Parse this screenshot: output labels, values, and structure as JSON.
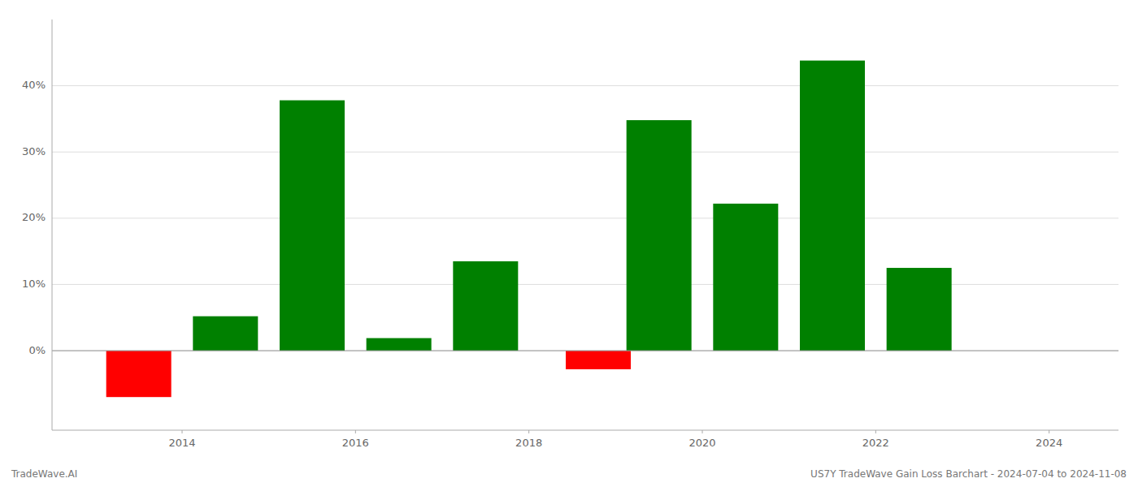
{
  "chart_data": {
    "type": "bar",
    "x": [
      2013.5,
      2014.5,
      2015.5,
      2016.5,
      2017.5,
      2018.8,
      2019.5,
      2020.5,
      2021.5,
      2022.5
    ],
    "values": [
      -7.0,
      5.2,
      37.8,
      1.9,
      13.5,
      -2.8,
      34.8,
      22.2,
      43.8,
      12.5
    ],
    "colors": [
      "#ff0000",
      "#008000",
      "#008000",
      "#008000",
      "#008000",
      "#ff0000",
      "#008000",
      "#008000",
      "#008000",
      "#008000"
    ],
    "xlim": [
      2012.5,
      2024.8
    ],
    "xticks": [
      2014,
      2016,
      2018,
      2020,
      2022,
      2024
    ],
    "ylim": [
      -12,
      50
    ],
    "yticks": [
      {
        "value": 0,
        "label": "0%"
      },
      {
        "value": 10,
        "label": "10%"
      },
      {
        "value": 20,
        "label": "20%"
      },
      {
        "value": 30,
        "label": "30%"
      },
      {
        "value": 40,
        "label": "40%"
      }
    ],
    "grid": true,
    "annotations": [
      "TradeWave.AI",
      "US7Y TradeWave Gain Loss Barchart - 2024-07-04 to 2024-11-08"
    ]
  }
}
